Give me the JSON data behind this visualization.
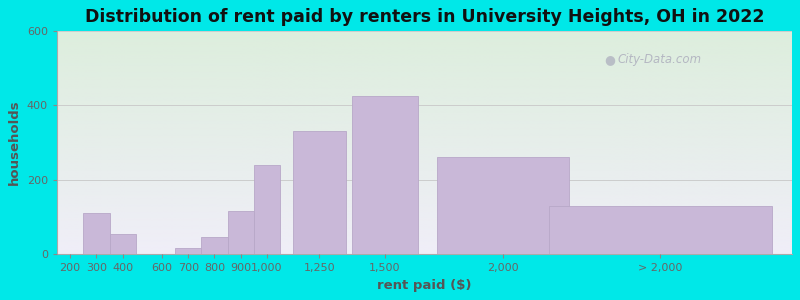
{
  "title": "Distribution of rent paid by renters in University Heights, OH in 2022",
  "xlabel": "rent paid ($)",
  "ylabel": "households",
  "bar_labels": [
    "200",
    "300",
    "400",
    "600",
    "700",
    "800",
    "900",
    "1,000",
    "1,250",
    "1,500",
    "2,000",
    "> 2,000"
  ],
  "bar_heights": [
    0,
    110,
    55,
    0,
    15,
    45,
    115,
    240,
    330,
    425,
    260,
    130
  ],
  "bar_color": "#c9b8d8",
  "bar_edge_color": "#b8a8c8",
  "bg_outer": "#00e8e8",
  "bg_plot_top": "#ddeedd",
  "bg_plot_bottom": "#f0eef8",
  "ylim": [
    0,
    600
  ],
  "yticks": [
    0,
    200,
    400,
    600
  ],
  "grid_color": "#cccccc",
  "title_fontsize": 12.5,
  "axis_label_fontsize": 9.5,
  "tick_fontsize": 8,
  "watermark_text": "City-Data.com",
  "watermark_color": "#aaaabb",
  "positions": [
    0.5,
    1.5,
    2.5,
    4.0,
    5.0,
    6.0,
    7.0,
    8.0,
    10.0,
    12.5,
    17.0,
    23.0
  ],
  "widths": [
    1.0,
    1.0,
    1.0,
    1.0,
    1.0,
    1.0,
    1.0,
    1.0,
    2.0,
    2.5,
    5.0,
    8.5
  ],
  "xlim": [
    0,
    28
  ]
}
